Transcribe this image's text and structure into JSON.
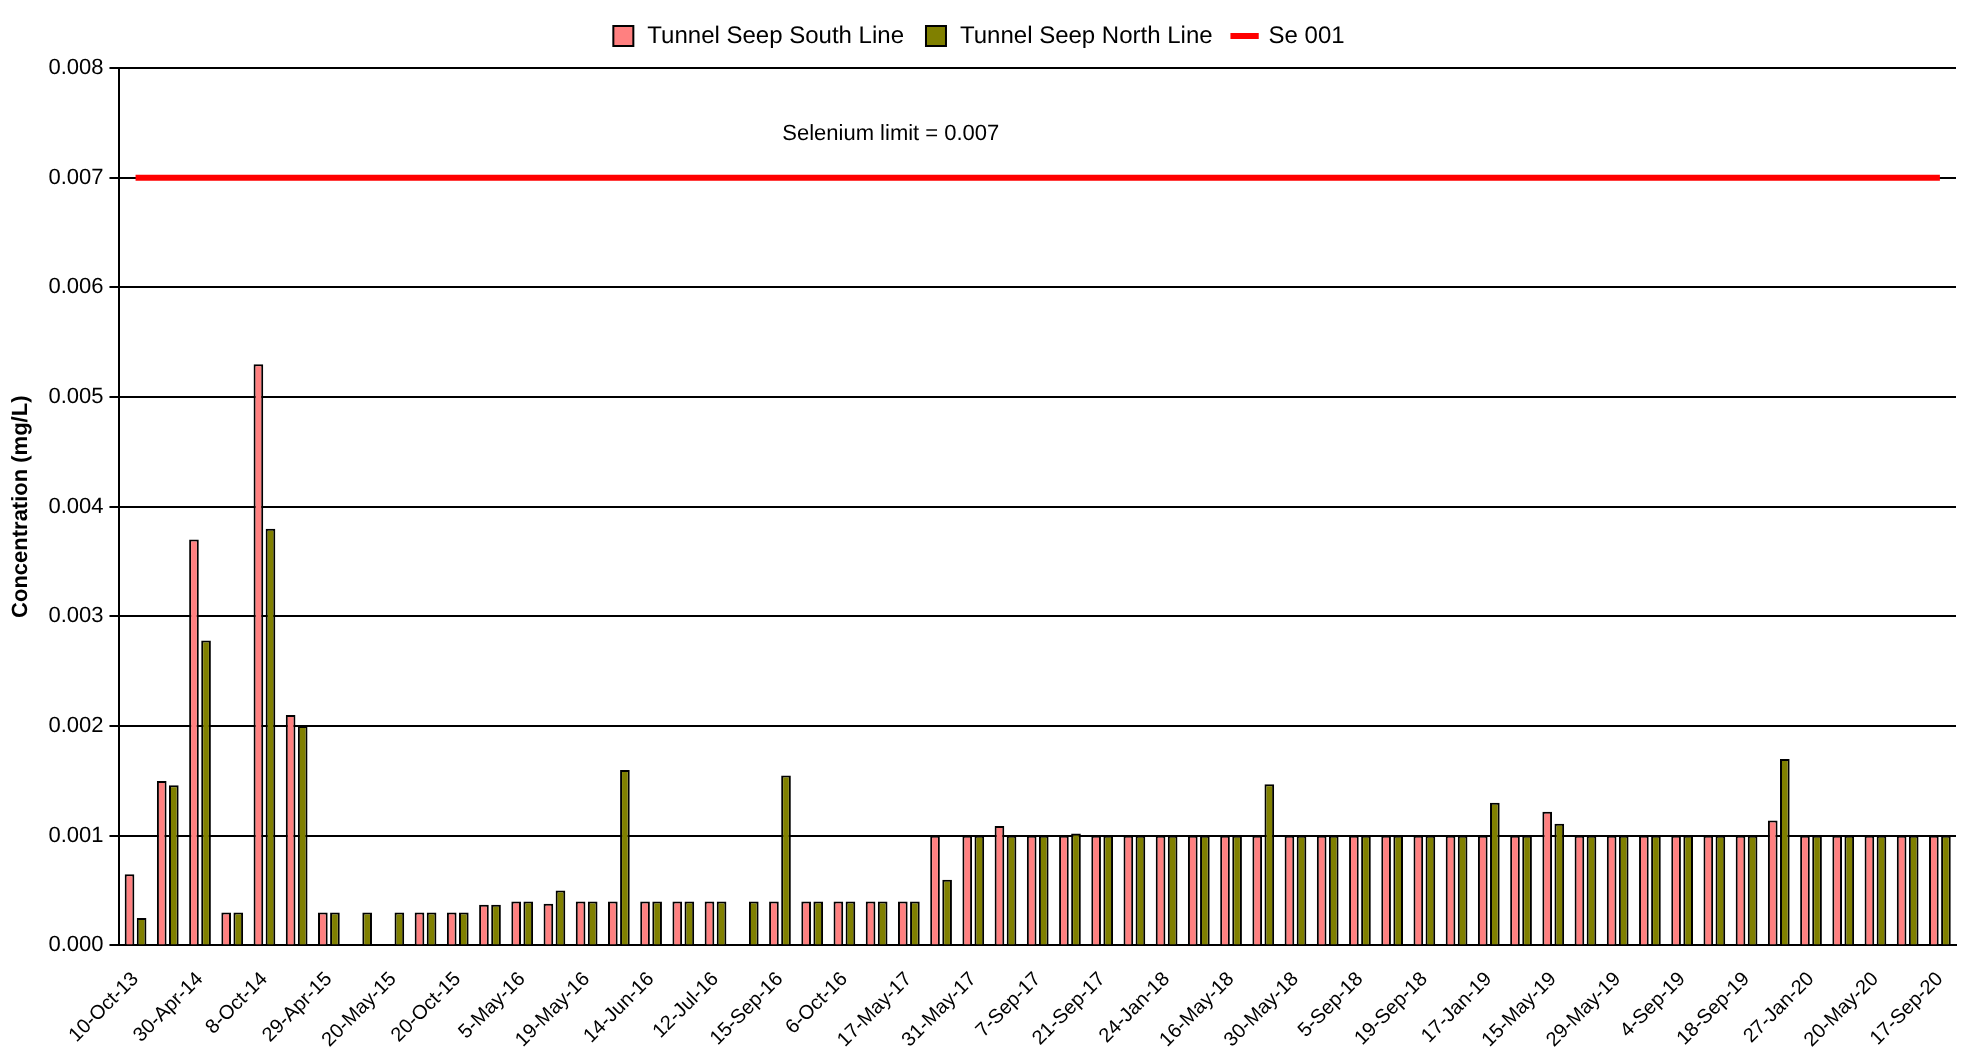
{
  "chart_data": {
    "type": "bar",
    "ylabel": "Concentration (mg/L)",
    "categories": [
      "10-Oct-13",
      null,
      "30-Apr-14",
      null,
      "8-Oct-14",
      null,
      "29-Apr-15",
      null,
      "20-May-15",
      null,
      "20-Oct-15",
      null,
      "5-May-16",
      null,
      "19-May-16",
      null,
      "14-Jun-16",
      null,
      "12-Jul-16",
      null,
      "15-Sep-16",
      null,
      "6-Oct-16",
      null,
      "17-May-17",
      null,
      "31-May-17",
      null,
      "7-Sep-17",
      null,
      "21-Sep-17",
      null,
      "24-Jan-18",
      null,
      "16-May-18",
      null,
      "30-May-18",
      null,
      "5-Sep-18",
      null,
      "19-Sep-18",
      null,
      "17-Jan-19",
      null,
      "15-May-19",
      null,
      "29-May-19",
      null,
      "4-Sep-19",
      null,
      "18-Sep-19",
      null,
      "27-Jan-20",
      null,
      "20-May-20",
      null,
      "17-Sep-20"
    ],
    "series": [
      {
        "name": "Tunnel Seep South Line",
        "color": "#ff8080",
        "values": [
          0.00065,
          0.0015,
          0.0037,
          0.0003,
          0.0053,
          0.0021,
          0.0003,
          null,
          null,
          0.0003,
          0.0003,
          0.00037,
          0.0004,
          0.00038,
          0.0004,
          0.0004,
          0.0004,
          0.0004,
          0.0004,
          null,
          0.0004,
          0.0004,
          0.0004,
          0.0004,
          0.0004,
          0.001,
          0.001,
          0.00109,
          0.001,
          0.001,
          0.001,
          0.001,
          0.001,
          0.001,
          0.001,
          0.001,
          0.001,
          0.001,
          0.001,
          0.001,
          0.001,
          0.001,
          0.001,
          0.001,
          0.00122,
          0.001,
          0.001,
          0.001,
          0.001,
          0.001,
          0.001,
          0.00114,
          0.001,
          0.001,
          0.001,
          0.001,
          0.001
        ]
      },
      {
        "name": "Tunnel Seep North Line",
        "color": "#808000",
        "values": [
          0.00025,
          0.00146,
          0.00278,
          0.0003,
          0.0038,
          0.002,
          0.0003,
          0.0003,
          0.0003,
          0.0003,
          0.0003,
          0.00037,
          0.0004,
          0.0005,
          0.0004,
          0.0016,
          0.0004,
          0.0004,
          0.0004,
          0.0004,
          0.00155,
          0.0004,
          0.0004,
          0.0004,
          0.0004,
          0.0006,
          0.001,
          0.001,
          0.001,
          0.00102,
          0.001,
          0.001,
          0.001,
          0.001,
          0.001,
          0.00147,
          0.001,
          0.001,
          0.001,
          0.001,
          0.001,
          0.001,
          0.0013,
          0.001,
          0.00111,
          0.001,
          0.001,
          0.001,
          0.001,
          0.001,
          0.001,
          0.0017,
          0.001,
          0.001,
          0.001,
          0.001,
          0.001
        ]
      },
      {
        "name": "Se 001",
        "type": "line",
        "color": "#ff0000",
        "values": [
          0.007,
          0.007,
          0.007,
          0.007,
          0.007,
          0.007,
          0.007,
          0.007,
          0.007,
          0.007,
          0.007,
          0.007,
          0.007,
          0.007,
          0.007,
          0.007,
          0.007,
          0.007,
          0.007,
          0.007,
          0.007,
          0.007,
          0.007,
          0.007,
          0.007,
          0.007,
          0.007,
          0.007,
          0.007,
          0.007,
          0.007,
          0.007,
          0.007,
          0.007,
          0.007,
          0.007,
          0.007,
          0.007,
          0.007,
          0.007,
          0.007,
          0.007,
          0.007,
          0.007,
          0.007,
          0.007,
          0.007,
          0.007,
          0.007,
          0.007,
          0.007,
          0.007,
          0.007,
          0.007,
          0.007,
          0.007,
          0.007
        ]
      }
    ],
    "ylim": [
      0,
      0.008
    ],
    "yticks": [
      {
        "value": 0,
        "label": "0.000"
      },
      {
        "value": 0.001,
        "label": "0.001"
      },
      {
        "value": 0.002,
        "label": "0.002"
      },
      {
        "value": 0.003,
        "label": "0.003"
      },
      {
        "value": 0.004,
        "label": "0.004"
      },
      {
        "value": 0.005,
        "label": "0.005"
      },
      {
        "value": 0.006,
        "label": "0.006"
      },
      {
        "value": 0.007,
        "label": "0.007"
      },
      {
        "value": 0.008,
        "label": "0.008"
      }
    ],
    "annotations": [
      "Selenium limit = 0.007"
    ],
    "grid": "y",
    "legend": "top",
    "marker": "none"
  }
}
